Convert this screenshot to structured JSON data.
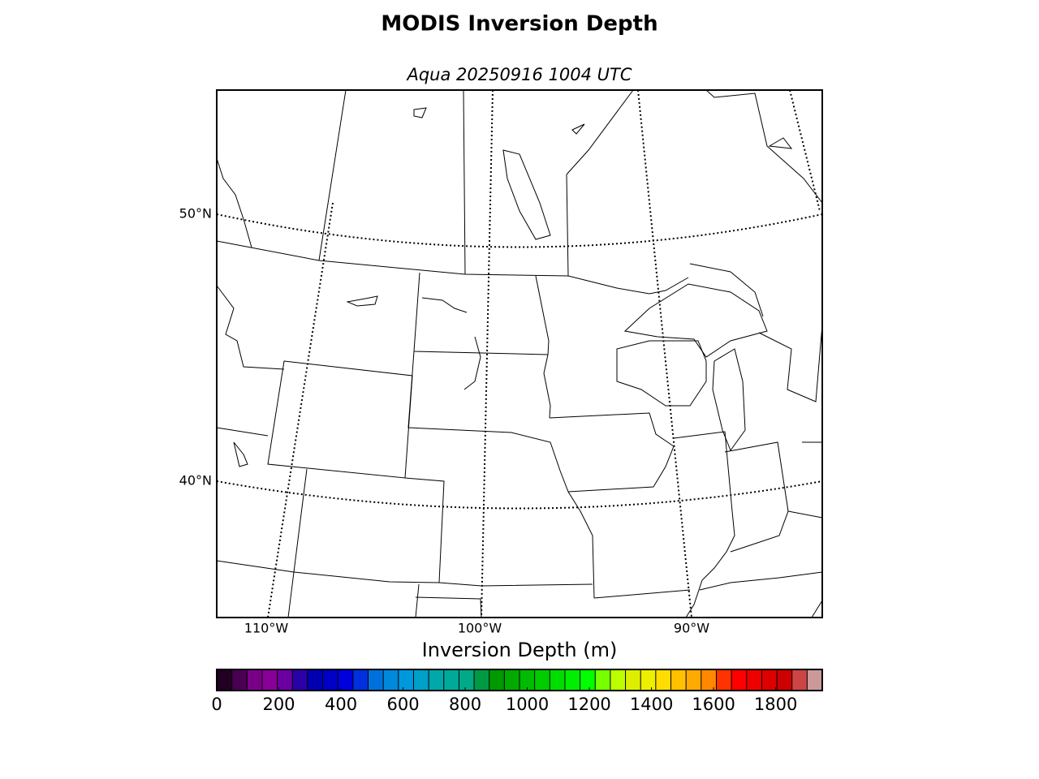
{
  "title": "MODIS Inversion Depth",
  "subtitle": "Aqua 20250916 1004 UTC",
  "map": {
    "lat_labels": [
      "50°N",
      "40°N"
    ],
    "lon_labels": [
      "110°W",
      "100°W",
      "90°W"
    ]
  },
  "colorbar": {
    "label": "Inversion Depth (m)",
    "range": [
      0,
      1950
    ],
    "ticks": [
      0,
      200,
      400,
      600,
      800,
      1000,
      1200,
      1400,
      1600,
      1800
    ],
    "colors": [
      "#220022",
      "#4a0050",
      "#7a0088",
      "#880098",
      "#6a00a0",
      "#2a00a8",
      "#0000b0",
      "#0000c8",
      "#0000dd",
      "#0030dd",
      "#0070dd",
      "#0088dd",
      "#0098dd",
      "#00a0c8",
      "#00a8aa",
      "#00aa99",
      "#00aa88",
      "#009944",
      "#009900",
      "#00aa00",
      "#00bb00",
      "#00cc00",
      "#00dd00",
      "#00ee00",
      "#00ff00",
      "#77ff00",
      "#bbff00",
      "#ddee00",
      "#eeee00",
      "#ffdd00",
      "#ffc000",
      "#ffaa00",
      "#ff8800",
      "#ff3300",
      "#ff0000",
      "#ee0000",
      "#dd0000",
      "#cc0000",
      "#cc4444",
      "#cc9999"
    ]
  }
}
